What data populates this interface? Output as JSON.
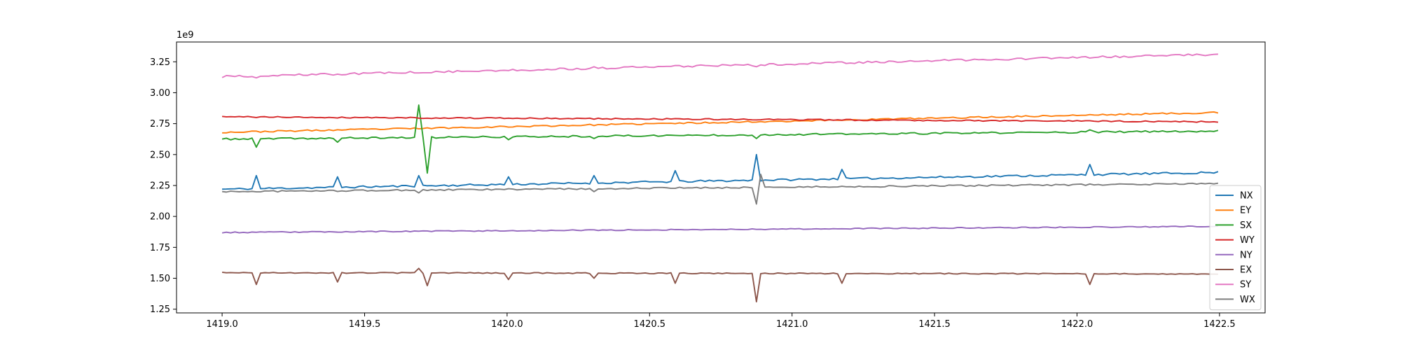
{
  "chart_data": {
    "type": "line",
    "title": "",
    "xlabel": "",
    "ylabel": "",
    "offset_text": "1e9",
    "grid": false,
    "legend_position": "lower-right",
    "xlim": [
      1418.84,
      1422.66
    ],
    "ylim": [
      1.22,
      3.41
    ],
    "x_ticks": [
      1419.0,
      1419.5,
      1420.0,
      1420.5,
      1421.0,
      1421.5,
      1422.0,
      1422.5
    ],
    "x_tick_labels": [
      "1419.0",
      "1419.5",
      "1420.0",
      "1420.5",
      "1421.0",
      "1421.5",
      "1422.0",
      "1422.5"
    ],
    "y_ticks": [
      1.25,
      1.5,
      1.75,
      2.0,
      2.25,
      2.5,
      2.75,
      3.0,
      3.25
    ],
    "y_tick_labels": [
      "1.25",
      "1.50",
      "1.75",
      "2.00",
      "2.25",
      "2.50",
      "2.75",
      "3.00",
      "3.25"
    ],
    "x_start": 1419.0,
    "x_step": 0.015,
    "n_points": 234,
    "series": [
      {
        "name": "NX",
        "color": "#1f77b4",
        "start": 2.22,
        "end": 2.355,
        "noise": 0.008,
        "seed": 11,
        "spikes": [
          [
            1419.12,
            2.33
          ],
          [
            1419.41,
            2.32
          ],
          [
            1419.69,
            2.33
          ],
          [
            1420.0,
            2.32
          ],
          [
            1420.3,
            2.33
          ],
          [
            1420.59,
            2.37
          ],
          [
            1420.87,
            2.5
          ],
          [
            1421.17,
            2.38
          ],
          [
            1422.05,
            2.42
          ]
        ]
      },
      {
        "name": "EY",
        "color": "#ff7f0e",
        "start": 2.68,
        "end": 2.84,
        "noise": 0.006,
        "seed": 23,
        "spikes": []
      },
      {
        "name": "SX",
        "color": "#2ca02c",
        "start": 2.625,
        "end": 2.69,
        "noise": 0.007,
        "seed": 37,
        "spikes": [
          [
            1419.12,
            2.56
          ],
          [
            1419.41,
            2.6
          ],
          [
            1419.69,
            2.9
          ],
          [
            1419.715,
            2.35
          ],
          [
            1420.0,
            2.62
          ],
          [
            1420.3,
            2.63
          ],
          [
            1420.87,
            2.63
          ],
          [
            1422.05,
            2.7
          ]
        ]
      },
      {
        "name": "WY",
        "color": "#d62728",
        "start": 2.805,
        "end": 2.765,
        "noise": 0.005,
        "seed": 41,
        "spikes": []
      },
      {
        "name": "NY",
        "color": "#9467bd",
        "start": 1.87,
        "end": 1.92,
        "noise": 0.004,
        "seed": 53,
        "spikes": []
      },
      {
        "name": "EX",
        "color": "#8c564b",
        "start": 1.545,
        "end": 1.535,
        "noise": 0.004,
        "seed": 67,
        "spikes": [
          [
            1419.12,
            1.45
          ],
          [
            1419.41,
            1.47
          ],
          [
            1419.69,
            1.58
          ],
          [
            1419.715,
            1.44
          ],
          [
            1420.0,
            1.49
          ],
          [
            1420.3,
            1.5
          ],
          [
            1420.59,
            1.46
          ],
          [
            1420.87,
            1.31
          ],
          [
            1421.17,
            1.46
          ],
          [
            1422.05,
            1.45
          ]
        ]
      },
      {
        "name": "SY",
        "color": "#e377c2",
        "start": 3.13,
        "end": 3.31,
        "noise": 0.008,
        "seed": 79,
        "spikes": [
          [
            1419.12,
            3.12
          ],
          [
            1419.41,
            3.15
          ],
          [
            1419.69,
            3.16
          ],
          [
            1420.3,
            3.21
          ],
          [
            1420.59,
            3.22
          ],
          [
            1420.87,
            3.21
          ],
          [
            1422.05,
            3.28
          ]
        ]
      },
      {
        "name": "WX",
        "color": "#7f7f7f",
        "start": 2.2,
        "end": 2.265,
        "noise": 0.006,
        "seed": 97,
        "spikes": [
          [
            1419.69,
            2.19
          ],
          [
            1420.3,
            2.2
          ],
          [
            1420.87,
            2.1
          ],
          [
            1420.89,
            2.34
          ]
        ]
      }
    ]
  }
}
